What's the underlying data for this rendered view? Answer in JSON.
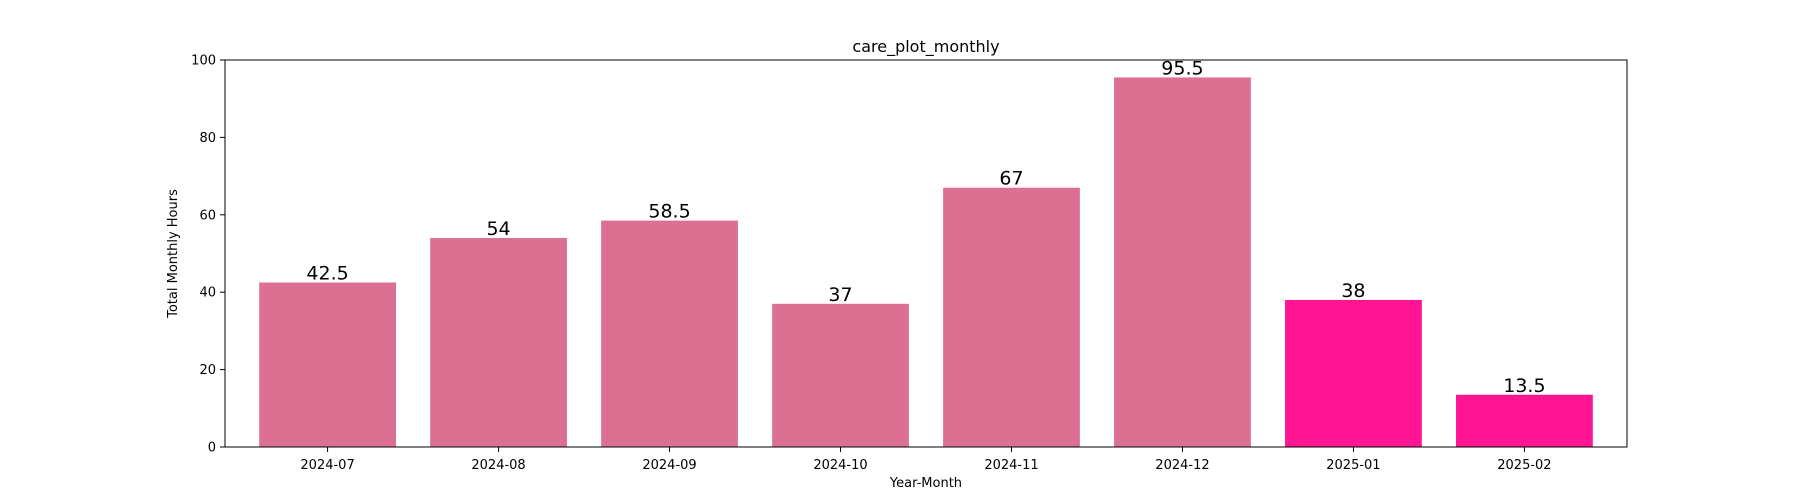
{
  "chart_data": {
    "type": "bar",
    "title": "care_plot_monthly",
    "xlabel": "Year-Month",
    "ylabel": "Total Monthly Hours",
    "categories": [
      "2024-07",
      "2024-08",
      "2024-09",
      "2024-10",
      "2024-11",
      "2024-12",
      "2025-01",
      "2025-02"
    ],
    "values": [
      42.5,
      54,
      58.5,
      37,
      67,
      95.5,
      38,
      13.5
    ],
    "value_labels": [
      "42.5",
      "54",
      "58.5",
      "37",
      "67",
      "95.5",
      "38",
      "13.5"
    ],
    "bar_colors": [
      "#db7093",
      "#db7093",
      "#db7093",
      "#db7093",
      "#db7093",
      "#db7093",
      "#ff1493",
      "#ff1493"
    ],
    "ylim": [
      0,
      100
    ],
    "yticks": [
      0,
      20,
      40,
      60,
      80,
      100
    ],
    "grid": false,
    "legend": "none"
  }
}
